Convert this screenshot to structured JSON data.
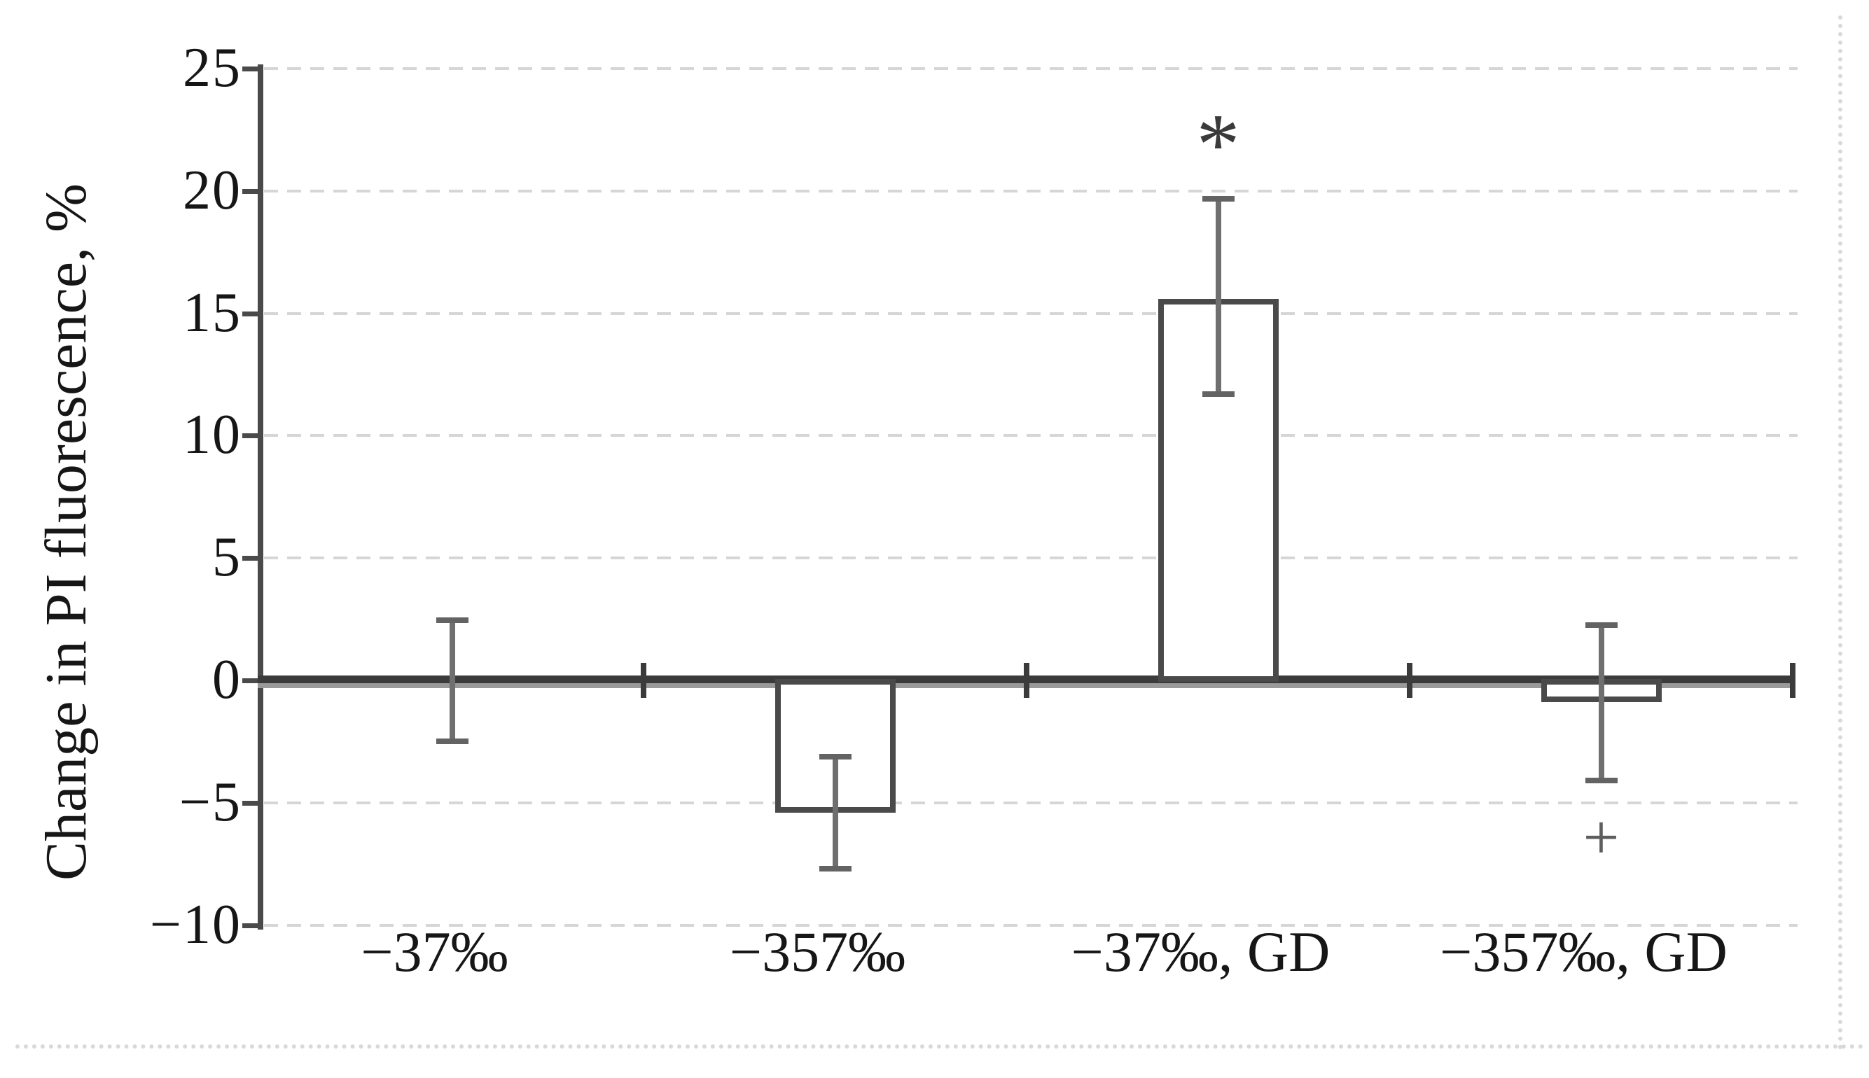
{
  "figure": {
    "y_axis_title": "Change in PI fluorescence, %"
  },
  "chart_data": {
    "type": "bar",
    "title": "",
    "xlabel": "",
    "ylabel": "Change in PI fluorescence, %",
    "categories": [
      "−37‰",
      "−357‰",
      "−37‰, GD",
      "−357‰, GD"
    ],
    "values": [
      0,
      -5.4,
      15.6,
      -0.9
    ],
    "error_upper": [
      2.5,
      -3.1,
      19.7,
      2.3
    ],
    "error_lower": [
      -2.5,
      -7.7,
      11.7,
      -4.1
    ],
    "annotations": [
      {
        "category_index": 2,
        "symbol": "*",
        "y": 22.8
      },
      {
        "category_index": 3,
        "symbol": "+",
        "y": -6.4
      }
    ],
    "ylim": [
      -10,
      25
    ],
    "ytick_step": 5,
    "ytick_labels": [
      "25",
      "20",
      "15",
      "10",
      "5",
      "0",
      "−5",
      "−10"
    ],
    "ytick_values": [
      25,
      20,
      15,
      10,
      5,
      0,
      -5,
      -10
    ],
    "legend": null,
    "grid": "horizontal-dashed",
    "bar_fill": "#ffffff",
    "bar_border_color": "#4a4a4a",
    "error_bar_color": "#6f6f6f",
    "axis_color": "#3b3b3b",
    "gridline_color": "#d6d6d6",
    "text_color": "#161616"
  }
}
